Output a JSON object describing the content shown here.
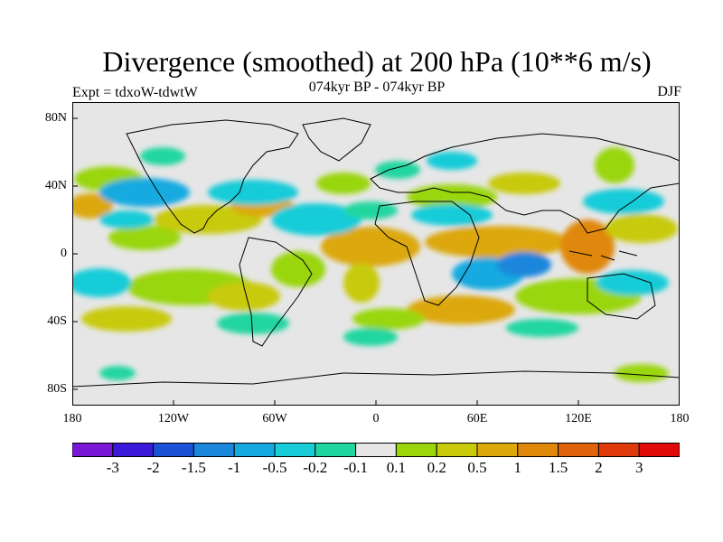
{
  "header": {
    "title": "Divergence (smoothed) at 200 hPa (10**6 m/s)",
    "subtitle": "074kyr BP - 074kyr BP",
    "experiment": "Expt = tdxoW-tdwtW",
    "season": "DJF"
  },
  "map": {
    "lat_labels": [
      "80N",
      "40N",
      "0",
      "40S",
      "80S"
    ],
    "lon_labels": [
      "180",
      "120W",
      "60W",
      "0",
      "60E",
      "120E",
      "180"
    ],
    "lon_range": [
      -180,
      180
    ],
    "lat_range": [
      -90,
      90
    ],
    "projection": "cylindrical equidistant"
  },
  "legend": {
    "colors": [
      "#7a18d8",
      "#3a1ad8",
      "#1a52d6",
      "#1a86dc",
      "#14aae0",
      "#18ccd8",
      "#20d6a0",
      "#e6e6e6",
      "#9ad60a",
      "#c8ca0a",
      "#dca80a",
      "#e0880a",
      "#e0620a",
      "#e03a0a",
      "#e00a0a"
    ],
    "labels": [
      "-3",
      "-2",
      "-1.5",
      "-1",
      "-0.5",
      "-0.2",
      "-0.1",
      "0.1",
      "0.2",
      "0.5",
      "1",
      "1.5",
      "2",
      "3"
    ]
  },
  "colors": {
    "land_outline": "#000000",
    "neutral": "#e6e6e6"
  }
}
